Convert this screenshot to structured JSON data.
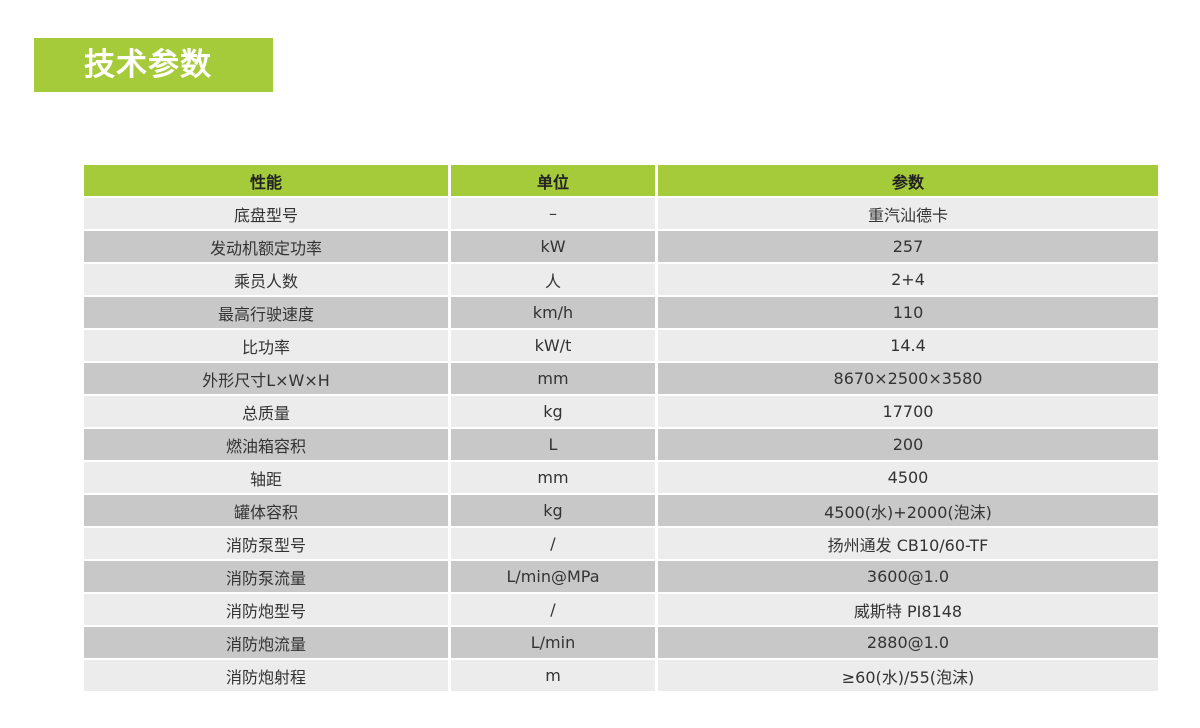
{
  "title": "技术参数",
  "colors": {
    "accent": "#a6cb3a",
    "row_light": "#ececed",
    "row_dark": "#c8c8c9"
  },
  "table": {
    "headers": [
      "性能",
      "单位",
      "参数"
    ],
    "rows": [
      [
        "底盘型号",
        "–",
        "重汽汕德卡"
      ],
      [
        "发动机额定功率",
        "kW",
        "257"
      ],
      [
        "乘员人数",
        "人",
        "2+4"
      ],
      [
        "最高行驶速度",
        "km/h",
        "110"
      ],
      [
        "比功率",
        "kW/t",
        "14.4"
      ],
      [
        "外形尺寸L×W×H",
        "mm",
        "8670×2500×3580"
      ],
      [
        "总质量",
        "kg",
        "17700"
      ],
      [
        "燃油箱容积",
        "L",
        "200"
      ],
      [
        "轴距",
        "mm",
        "4500"
      ],
      [
        "罐体容积",
        "kg",
        "4500(水)+2000(泡沫)"
      ],
      [
        "消防泵型号",
        "/",
        "扬州通发 CB10/60-TF"
      ],
      [
        "消防泵流量",
        "L/min@MPa",
        "3600@1.0"
      ],
      [
        "消防炮型号",
        "/",
        "威斯特 PI8148"
      ],
      [
        "消防炮流量",
        "L/min",
        "2880@1.0"
      ],
      [
        "消防炮射程",
        "m",
        "≥60(水)/55(泡沫)"
      ]
    ]
  }
}
